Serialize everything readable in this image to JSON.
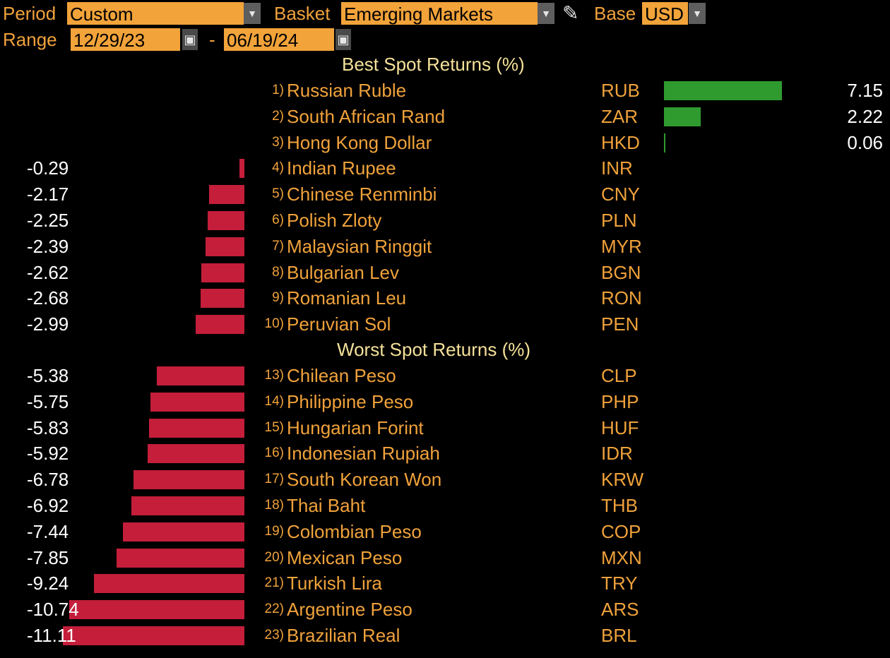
{
  "header": {
    "period_label": "Period",
    "period_value": "Custom",
    "basket_label": "Basket",
    "basket_value": "Emerging Markets",
    "base_label": "Base",
    "base_value": "USD",
    "range_label": "Range",
    "range_start": "12/29/23",
    "range_separator": "-",
    "range_end": "06/19/24",
    "dropdown_icon": "triangle-down-icon",
    "edit_icon": "pencil-icon",
    "calendar_icon": "calendar-icon"
  },
  "colors": {
    "label": "#f0a23b",
    "field_bg": "#f2a33a",
    "section_title": "#f5e19a",
    "positive_bar": "#2f9b2f",
    "negative_bar": "#c41e3a"
  },
  "best": {
    "title": "Best Spot Returns (%)",
    "rows": [
      {
        "rank": "1)",
        "name": "Russian Ruble",
        "code": "RUB",
        "value": "7.15"
      },
      {
        "rank": "2)",
        "name": "South African Rand",
        "code": "ZAR",
        "value": "2.22"
      },
      {
        "rank": "3)",
        "name": "Hong Kong Dollar",
        "code": "HKD",
        "value": "0.06"
      },
      {
        "rank": "4)",
        "name": "Indian Rupee",
        "code": "INR",
        "value": "-0.29"
      },
      {
        "rank": "5)",
        "name": "Chinese Renminbi",
        "code": "CNY",
        "value": "-2.17"
      },
      {
        "rank": "6)",
        "name": "Polish Zloty",
        "code": "PLN",
        "value": "-2.25"
      },
      {
        "rank": "7)",
        "name": "Malaysian Ringgit",
        "code": "MYR",
        "value": "-2.39"
      },
      {
        "rank": "8)",
        "name": "Bulgarian Lev",
        "code": "BGN",
        "value": "-2.62"
      },
      {
        "rank": "9)",
        "name": "Romanian Leu",
        "code": "RON",
        "value": "-2.68"
      },
      {
        "rank": "10)",
        "name": "Peruvian Sol",
        "code": "PEN",
        "value": "-2.99"
      }
    ]
  },
  "worst": {
    "title": "Worst Spot Returns (%)",
    "rows": [
      {
        "rank": "13)",
        "name": "Chilean Peso",
        "code": "CLP",
        "value": "-5.38"
      },
      {
        "rank": "14)",
        "name": "Philippine Peso",
        "code": "PHP",
        "value": "-5.75"
      },
      {
        "rank": "15)",
        "name": "Hungarian Forint",
        "code": "HUF",
        "value": "-5.83"
      },
      {
        "rank": "16)",
        "name": "Indonesian Rupiah",
        "code": "IDR",
        "value": "-5.92"
      },
      {
        "rank": "17)",
        "name": "South Korean Won",
        "code": "KRW",
        "value": "-6.78"
      },
      {
        "rank": "18)",
        "name": "Thai Baht",
        "code": "THB",
        "value": "-6.92"
      },
      {
        "rank": "19)",
        "name": "Colombian Peso",
        "code": "COP",
        "value": "-7.44"
      },
      {
        "rank": "20)",
        "name": "Mexican Peso",
        "code": "MXN",
        "value": "-7.85"
      },
      {
        "rank": "21)",
        "name": "Turkish Lira",
        "code": "TRY",
        "value": "-9.24"
      },
      {
        "rank": "22)",
        "name": "Argentine Peso",
        "code": "ARS",
        "value": "-10.74"
      },
      {
        "rank": "23)",
        "name": "Brazilian Real",
        "code": "BRL",
        "value": "-11.11"
      }
    ]
  }
}
